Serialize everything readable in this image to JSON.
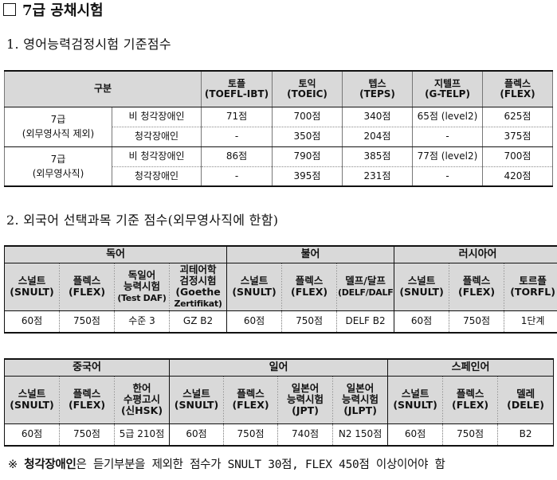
{
  "title": "7급 공채시험",
  "section1": {
    "heading": "1. 영어능력검정시험 기준점수",
    "header_category": "구분",
    "columns": [
      {
        "ko": "토플",
        "en": "(TOEFL-IBT)"
      },
      {
        "ko": "토익",
        "en": "(TOEIC)"
      },
      {
        "ko": "텝스",
        "en": "(TEPS)"
      },
      {
        "ko": "지텔프",
        "en": "(G-TELP)"
      },
      {
        "ko": "플렉스",
        "en": "(FLEX)"
      }
    ],
    "groups": [
      {
        "name_line1": "7급",
        "name_line2": "(외무영사직 제외)",
        "rows": [
          {
            "type": "비 청각장애인",
            "values": [
              "71점",
              "700점",
              "340점",
              "65점 (level2)",
              "625점"
            ]
          },
          {
            "type": "청각장애인",
            "values": [
              "-",
              "350점",
              "204점",
              "-",
              "375점"
            ]
          }
        ]
      },
      {
        "name_line1": "7급",
        "name_line2": "(외무영사직)",
        "rows": [
          {
            "type": "비 청각장애인",
            "values": [
              "86점",
              "790점",
              "385점",
              "77점 (level2)",
              "700점"
            ]
          },
          {
            "type": "청각장애인",
            "values": [
              "-",
              "395점",
              "231점",
              "-",
              "420점"
            ]
          }
        ]
      }
    ]
  },
  "section2": {
    "heading": "2. 외국어 선택과목 기준 점수(외무영사직에 한함)",
    "table_a": {
      "languages": [
        "독어",
        "불어",
        "러시아어"
      ],
      "exams": [
        [
          "스널트",
          "(SNULT)"
        ],
        [
          "플렉스",
          "(FLEX)"
        ],
        [
          "독일어",
          "능력시험",
          "(Test DAF)"
        ],
        [
          "괴테어학",
          "검정시험",
          "(Goethe",
          "Zertifikat)"
        ],
        [
          "스널트",
          "(SNULT)"
        ],
        [
          "플렉스",
          "(FLEX)"
        ],
        [
          "델프/달프",
          "(DELF/DALF)"
        ],
        [
          "스널트",
          "(SNULT)"
        ],
        [
          "플렉스",
          "(FLEX)"
        ],
        [
          "토르플",
          "(TORFL)"
        ]
      ],
      "values": [
        "60점",
        "750점",
        "수준 3",
        "GZ B2",
        "60점",
        "750점",
        "DELF B2",
        "60점",
        "750점",
        "1단계"
      ]
    },
    "table_b": {
      "languages": [
        "중국어",
        "일어",
        "스페인어"
      ],
      "exams": [
        [
          "스널트",
          "(SNULT)"
        ],
        [
          "플렉스",
          "(FLEX)"
        ],
        [
          "한어",
          "수평고시",
          "(신HSK)"
        ],
        [
          "스널트",
          "(SNULT)"
        ],
        [
          "플렉스",
          "(FLEX)"
        ],
        [
          "일본어",
          "능력시험",
          "(JPT)"
        ],
        [
          "일본어",
          "능력시험",
          "(JLPT)"
        ],
        [
          "스널트",
          "(SNULT)"
        ],
        [
          "플렉스",
          "(FLEX)"
        ],
        [
          "델레",
          "(DELE)"
        ]
      ],
      "values": [
        "60점",
        "750점",
        "5급 210점",
        "60점",
        "750점",
        "740점",
        "N2 150점",
        "60점",
        "750점",
        "B2"
      ]
    }
  },
  "note": {
    "prefix": "※ ",
    "bold": "청각장애인",
    "rest": "은 듣기부분을 제외한 점수가 SNULT 30점, FLEX 450점 이상이어야 함"
  }
}
